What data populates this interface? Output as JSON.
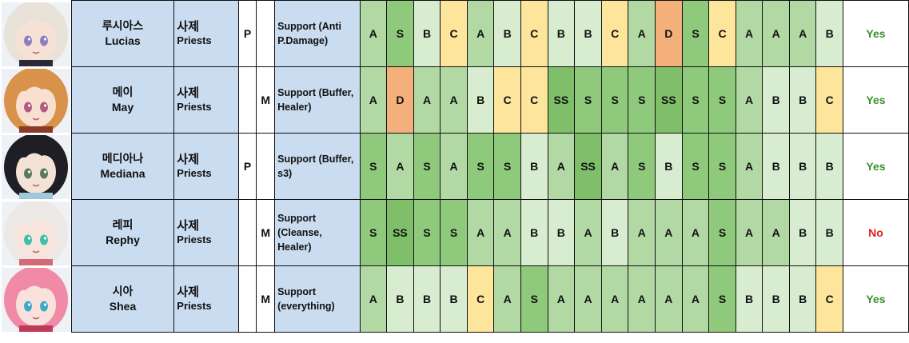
{
  "rows": [
    {
      "name_kr": "루시아스",
      "name_en": "Lucias",
      "class_kr": "사제",
      "class_en": "Priests",
      "p": "P",
      "m": "",
      "role_lines": [
        "Support (Anti",
        "P.Damage)",
        ""
      ],
      "grades": [
        "A",
        "S",
        "B",
        "C",
        "A",
        "B",
        "C",
        "B",
        "B",
        "C",
        "A",
        "D",
        "S",
        "C",
        "A",
        "A",
        "A",
        "B"
      ],
      "verdict": "Yes",
      "avatar": {
        "hair": "#e8e2d8",
        "skin": "#f6e3d6",
        "eye": "#8a7fc0",
        "accent": "#2c2a3a"
      }
    },
    {
      "name_kr": "메이",
      "name_en": "May",
      "class_kr": "사제",
      "class_en": "Priests",
      "p": "",
      "m": "M",
      "role_lines": [
        "Support (Buffer,",
        "Healer)",
        ""
      ],
      "grades": [
        "A",
        "D",
        "A",
        "A",
        "B",
        "C",
        "C",
        "SS",
        "S",
        "S",
        "S",
        "SS",
        "S",
        "S",
        "A",
        "B",
        "B",
        "C"
      ],
      "verdict": "Yes",
      "avatar": {
        "hair": "#d9924a",
        "skin": "#f8dfcf",
        "eye": "#b05a80",
        "accent": "#8a3a2a"
      }
    },
    {
      "name_kr": "메디아나",
      "name_en": "Mediana",
      "class_kr": "사제",
      "class_en": "Priests",
      "p": "P",
      "m": "",
      "role_lines": [
        "Support (Buffer,",
        "s3)",
        ""
      ],
      "grades": [
        "S",
        "A",
        "S",
        "A",
        "S",
        "S",
        "B",
        "A",
        "SS",
        "A",
        "S",
        "B",
        "S",
        "S",
        "A",
        "B",
        "B",
        "B"
      ],
      "verdict": "Yes",
      "avatar": {
        "hair": "#1e1e24",
        "skin": "#f4e2d6",
        "eye": "#5a7a5a",
        "accent": "#9fc9d8"
      }
    },
    {
      "name_kr": "레피",
      "name_en": "Rephy",
      "class_kr": "사제",
      "class_en": "Priests",
      "p": "",
      "m": "M",
      "role_lines": [
        "Support",
        "(Cleanse,",
        "Healer)"
      ],
      "grades": [
        "S",
        "SS",
        "S",
        "S",
        "A",
        "A",
        "B",
        "B",
        "A",
        "B",
        "A",
        "A",
        "A",
        "S",
        "A",
        "A",
        "B",
        "B"
      ],
      "verdict": "No",
      "avatar": {
        "hair": "#ece8e6",
        "skin": "#f7e4dc",
        "eye": "#3fbfa8",
        "accent": "#d46a78"
      }
    },
    {
      "name_kr": "시아",
      "name_en": "Shea",
      "class_kr": "사제",
      "class_en": "Priests",
      "p": "",
      "m": "M",
      "role_lines": [
        "Support",
        "(everything)",
        ""
      ],
      "grades": [
        "A",
        "B",
        "B",
        "B",
        "C",
        "A",
        "S",
        "A",
        "A",
        "A",
        "A",
        "A",
        "A",
        "S",
        "B",
        "B",
        "B",
        "C"
      ],
      "verdict": "Yes",
      "avatar": {
        "hair": "#f08aa6",
        "skin": "#f9e2dc",
        "eye": "#3fa7c9",
        "accent": "#c03a5a"
      }
    }
  ]
}
